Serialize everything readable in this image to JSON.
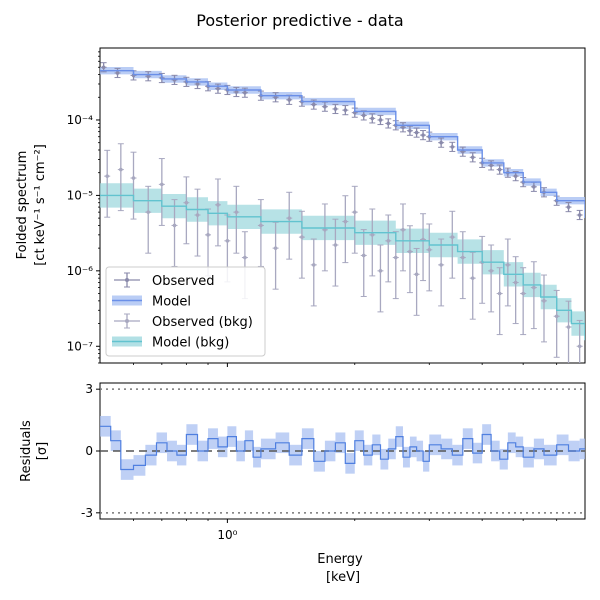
{
  "chart_data": [
    {
      "type": "line",
      "panel": "spectrum",
      "title": "Posterior predictive - data",
      "ylabel_line1": "Folded spectrum",
      "ylabel_line2": "[ct keV⁻¹ s⁻¹ cm⁻²]",
      "xscale": "log",
      "yscale": "log",
      "xlim": [
        0.5,
        7.0
      ],
      "ylim": [
        6e-08,
        0.0009
      ],
      "y_tick_labels": [
        "10⁻⁷",
        "10⁻⁶",
        "10⁻⁵",
        "10⁻⁴"
      ],
      "y_tick_values": [
        1e-07,
        1e-06,
        1e-05,
        0.0001
      ],
      "legend_position": "lower-left",
      "legend": [
        "Observed",
        "Model",
        "Observed (bkg)",
        "Model (bkg)"
      ],
      "series": [
        {
          "name": "Model",
          "color": "#6a8fe8",
          "x": [
            0.5,
            0.6,
            0.7,
            0.8,
            0.9,
            1.0,
            1.2,
            1.5,
            2.0,
            2.5,
            3.0,
            3.5,
            4.0,
            4.5,
            5.0,
            5.5,
            6.0,
            7.0
          ],
          "values": [
            0.00045,
            0.0004,
            0.00035,
            0.00032,
            0.00028,
            0.00025,
            0.00021,
            0.000175,
            0.00013,
            8.5e-05,
            6e-05,
            4e-05,
            2.7e-05,
            2e-05,
            1.5e-05,
            1.1e-05,
            8.5e-06,
            5e-06
          ]
        },
        {
          "name": "Model (bkg)",
          "color": "#62c3cf",
          "x": [
            0.5,
            0.6,
            0.7,
            0.8,
            0.9,
            1.0,
            1.2,
            1.5,
            2.0,
            2.5,
            3.0,
            3.5,
            4.0,
            4.5,
            5.0,
            5.5,
            6.0,
            6.5,
            7.0
          ],
          "values": [
            1e-05,
            8.5e-06,
            7.2e-06,
            6.5e-06,
            5.8e-06,
            5.2e-06,
            4.5e-06,
            3.7e-06,
            3.2e-06,
            2.5e-06,
            2.2e-06,
            1.8e-06,
            1.3e-06,
            9e-07,
            6.5e-07,
            4.5e-07,
            3e-07,
            2e-07,
            1.2e-07
          ]
        },
        {
          "name": "Observed",
          "color": "#8a8aab",
          "x": [
            0.51,
            0.55,
            0.6,
            0.65,
            0.7,
            0.75,
            0.8,
            0.85,
            0.9,
            0.95,
            1.0,
            1.05,
            1.1,
            1.2,
            1.3,
            1.4,
            1.5,
            1.6,
            1.7,
            1.8,
            1.9,
            2.0,
            2.1,
            2.2,
            2.3,
            2.4,
            2.5,
            2.6,
            2.7,
            2.8,
            2.9,
            3.0,
            3.2,
            3.4,
            3.6,
            3.8,
            4.0,
            4.2,
            4.4,
            4.6,
            4.8,
            5.0,
            5.3,
            5.6,
            6.0,
            6.4,
            6.8
          ],
          "values": [
            0.0005,
            0.00042,
            0.00039,
            0.00038,
            0.00036,
            0.00034,
            0.00032,
            0.0003,
            0.00028,
            0.00026,
            0.00025,
            0.000235,
            0.00023,
            0.00021,
            0.0002,
            0.000185,
            0.000175,
            0.00016,
            0.00015,
            0.00014,
            0.000135,
            0.000125,
            0.000115,
            0.000105,
            0.0001,
            9e-05,
            8.5e-05,
            8e-05,
            7.2e-05,
            6.8e-05,
            6.3e-05,
            6e-05,
            5e-05,
            4.4e-05,
            3.8e-05,
            3.2e-05,
            2.7e-05,
            2.5e-05,
            2.2e-05,
            2e-05,
            1.8e-05,
            1.5e-05,
            1.3e-05,
            1.1e-05,
            8.5e-06,
            7e-06,
            5.5e-06
          ]
        },
        {
          "name": "Observed (bkg)",
          "color": "#a8a8c0",
          "x": [
            0.52,
            0.56,
            0.6,
            0.65,
            0.7,
            0.75,
            0.8,
            0.85,
            0.9,
            0.95,
            1.0,
            1.05,
            1.1,
            1.2,
            1.3,
            1.4,
            1.5,
            1.6,
            1.7,
            1.8,
            1.9,
            2.0,
            2.1,
            2.2,
            2.3,
            2.4,
            2.5,
            2.6,
            2.7,
            2.8,
            2.9,
            3.0,
            3.2,
            3.4,
            3.6,
            3.8,
            4.0,
            4.2,
            4.4,
            4.6,
            4.8,
            5.0,
            5.3,
            5.6,
            6.0,
            6.4,
            6.8
          ],
          "values": [
            1.8e-05,
            2.2e-05,
            1.7e-05,
            6e-06,
            1.4e-05,
            4e-06,
            8e-06,
            5.5e-06,
            3e-06,
            7.5e-06,
            2.5e-06,
            6e-06,
            1.5e-06,
            4e-06,
            2e-06,
            5e-06,
            2.8e-06,
            1.2e-06,
            3.5e-06,
            2.2e-06,
            4.5e-06,
            6e-06,
            1.6e-06,
            3e-06,
            1e-06,
            2.5e-06,
            1.5e-06,
            3.5e-06,
            1.8e-06,
            9e-07,
            2.6e-06,
            1.9e-06,
            1.2e-06,
            2.8e-06,
            1.5e-06,
            8e-07,
            1.3e-06,
            1e-06,
            5e-07,
            1.2e-06,
            7e-07,
            5e-07,
            6e-07,
            4e-07,
            2.5e-07,
            1.8e-07,
            1e-07
          ]
        }
      ]
    },
    {
      "type": "line",
      "panel": "residuals",
      "ylabel_line1": "Residuals",
      "ylabel_line2": "[σ]",
      "xlabel_line1": "Energy",
      "xlabel_line2": "[keV]",
      "xscale": "log",
      "xlim": [
        0.5,
        7.0
      ],
      "ylim": [
        -3.3,
        3.3
      ],
      "x_tick_label": "10⁰",
      "x_tick_value": 1.0,
      "y_tick_labels": [
        "-3",
        "0",
        "3"
      ],
      "y_tick_values": [
        -3,
        0,
        3
      ],
      "reference_lines": [
        -3,
        0,
        3
      ],
      "series": [
        {
          "name": "Residuals",
          "color": "#4f7fe0",
          "x": [
            0.5,
            0.53,
            0.56,
            0.6,
            0.64,
            0.68,
            0.72,
            0.76,
            0.8,
            0.85,
            0.9,
            0.95,
            1.0,
            1.05,
            1.1,
            1.15,
            1.2,
            1.3,
            1.4,
            1.5,
            1.6,
            1.7,
            1.8,
            1.9,
            2.0,
            2.1,
            2.2,
            2.3,
            2.4,
            2.5,
            2.6,
            2.7,
            2.8,
            2.9,
            3.0,
            3.2,
            3.4,
            3.6,
            3.8,
            4.0,
            4.2,
            4.4,
            4.6,
            4.8,
            5.0,
            5.3,
            5.6,
            6.0,
            6.4,
            6.8
          ],
          "values": [
            1.2,
            0.5,
            -0.9,
            -0.7,
            -0.2,
            0.4,
            0.0,
            -0.2,
            0.8,
            0.0,
            0.6,
            0.2,
            0.7,
            0.0,
            0.5,
            -0.3,
            0.1,
            0.4,
            -0.2,
            0.6,
            -0.5,
            0.0,
            0.4,
            -0.6,
            0.5,
            -0.2,
            0.3,
            -0.4,
            0.1,
            0.7,
            -0.3,
            0.2,
            0.0,
            -0.5,
            0.3,
            0.1,
            -0.2,
            0.6,
            -0.1,
            0.8,
            0.0,
            -0.4,
            0.4,
            0.2,
            -0.3,
            0.1,
            -0.2,
            0.3,
            0.0,
            0.1
          ]
        }
      ]
    }
  ]
}
